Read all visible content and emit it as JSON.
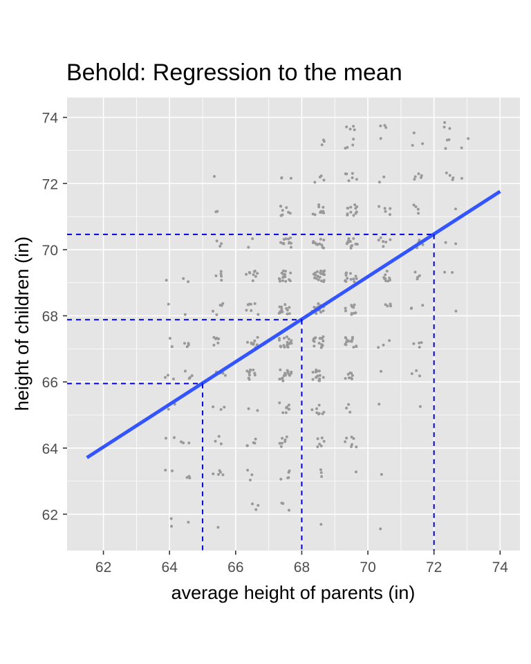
{
  "chart_data": {
    "type": "scatter",
    "title": "Behold: Regression to the mean",
    "xlabel": "average height of parents (in)",
    "ylabel": "height of children (in)",
    "xlim": [
      60.9,
      74.6
    ],
    "ylim": [
      60.9,
      74.6
    ],
    "x_ticks": [
      "62",
      "64",
      "66",
      "68",
      "70",
      "72",
      "74"
    ],
    "y_ticks": [
      "62",
      "64",
      "66",
      "68",
      "70",
      "72",
      "74"
    ],
    "grid": true,
    "colors": {
      "panel": "#e5e5e5",
      "grid": "#ffffff",
      "points": "#999999",
      "fit_line": "#3355ff",
      "guides": "#0000dd"
    },
    "point_groups": [
      {
        "x": 64.0,
        "y": 61.7,
        "n": 2
      },
      {
        "x": 64.5,
        "y": 61.7,
        "n": 1
      },
      {
        "x": 64.0,
        "y": 63.2,
        "n": 2
      },
      {
        "x": 64.5,
        "y": 63.2,
        "n": 3
      },
      {
        "x": 64.0,
        "y": 64.2,
        "n": 2
      },
      {
        "x": 64.5,
        "y": 64.2,
        "n": 3
      },
      {
        "x": 64.0,
        "y": 65.2,
        "n": 2
      },
      {
        "x": 64.0,
        "y": 66.2,
        "n": 3
      },
      {
        "x": 64.5,
        "y": 66.2,
        "n": 4
      },
      {
        "x": 64.0,
        "y": 67.2,
        "n": 2
      },
      {
        "x": 64.5,
        "y": 67.2,
        "n": 4
      },
      {
        "x": 64.0,
        "y": 68.2,
        "n": 1
      },
      {
        "x": 64.5,
        "y": 68.2,
        "n": 1
      },
      {
        "x": 64.0,
        "y": 69.2,
        "n": 1
      },
      {
        "x": 64.5,
        "y": 69.2,
        "n": 2
      },
      {
        "x": 65.5,
        "y": 61.7,
        "n": 1
      },
      {
        "x": 65.5,
        "y": 63.2,
        "n": 5
      },
      {
        "x": 65.5,
        "y": 64.2,
        "n": 3
      },
      {
        "x": 65.5,
        "y": 65.2,
        "n": 3
      },
      {
        "x": 65.5,
        "y": 66.2,
        "n": 6
      },
      {
        "x": 65.5,
        "y": 67.2,
        "n": 6
      },
      {
        "x": 65.5,
        "y": 68.2,
        "n": 5
      },
      {
        "x": 65.5,
        "y": 69.2,
        "n": 5
      },
      {
        "x": 65.5,
        "y": 70.2,
        "n": 3
      },
      {
        "x": 65.5,
        "y": 71.2,
        "n": 2
      },
      {
        "x": 65.5,
        "y": 72.2,
        "n": 1
      },
      {
        "x": 66.5,
        "y": 62.2,
        "n": 3
      },
      {
        "x": 66.5,
        "y": 63.2,
        "n": 3
      },
      {
        "x": 66.5,
        "y": 64.2,
        "n": 5
      },
      {
        "x": 66.5,
        "y": 65.2,
        "n": 2
      },
      {
        "x": 66.5,
        "y": 66.2,
        "n": 10
      },
      {
        "x": 66.5,
        "y": 67.2,
        "n": 10
      },
      {
        "x": 66.5,
        "y": 68.2,
        "n": 7
      },
      {
        "x": 66.5,
        "y": 69.2,
        "n": 9
      },
      {
        "x": 66.5,
        "y": 70.2,
        "n": 2
      },
      {
        "x": 67.5,
        "y": 62.2,
        "n": 3
      },
      {
        "x": 67.5,
        "y": 63.2,
        "n": 5
      },
      {
        "x": 67.5,
        "y": 64.2,
        "n": 7
      },
      {
        "x": 67.5,
        "y": 65.2,
        "n": 8
      },
      {
        "x": 67.5,
        "y": 66.2,
        "n": 15
      },
      {
        "x": 67.5,
        "y": 67.2,
        "n": 18
      },
      {
        "x": 67.5,
        "y": 68.2,
        "n": 13
      },
      {
        "x": 67.5,
        "y": 69.2,
        "n": 16
      },
      {
        "x": 67.5,
        "y": 70.2,
        "n": 12
      },
      {
        "x": 67.5,
        "y": 71.2,
        "n": 8
      },
      {
        "x": 67.5,
        "y": 72.2,
        "n": 3
      },
      {
        "x": 68.5,
        "y": 61.7,
        "n": 1
      },
      {
        "x": 68.5,
        "y": 63.2,
        "n": 3
      },
      {
        "x": 68.5,
        "y": 64.2,
        "n": 6
      },
      {
        "x": 68.5,
        "y": 65.2,
        "n": 8
      },
      {
        "x": 68.5,
        "y": 66.2,
        "n": 14
      },
      {
        "x": 68.5,
        "y": 67.2,
        "n": 16
      },
      {
        "x": 68.5,
        "y": 68.2,
        "n": 15
      },
      {
        "x": 68.5,
        "y": 69.2,
        "n": 22
      },
      {
        "x": 68.5,
        "y": 70.2,
        "n": 12
      },
      {
        "x": 68.5,
        "y": 71.2,
        "n": 10
      },
      {
        "x": 68.5,
        "y": 72.2,
        "n": 4
      },
      {
        "x": 68.5,
        "y": 73.2,
        "n": 3
      },
      {
        "x": 69.5,
        "y": 63.2,
        "n": 1
      },
      {
        "x": 69.5,
        "y": 64.2,
        "n": 7
      },
      {
        "x": 69.5,
        "y": 65.2,
        "n": 3
      },
      {
        "x": 69.5,
        "y": 66.2,
        "n": 8
      },
      {
        "x": 69.5,
        "y": 67.2,
        "n": 14
      },
      {
        "x": 69.5,
        "y": 68.2,
        "n": 10
      },
      {
        "x": 69.5,
        "y": 69.2,
        "n": 13
      },
      {
        "x": 69.5,
        "y": 70.2,
        "n": 14
      },
      {
        "x": 69.5,
        "y": 71.2,
        "n": 12
      },
      {
        "x": 69.5,
        "y": 72.2,
        "n": 6
      },
      {
        "x": 69.5,
        "y": 73.2,
        "n": 4
      },
      {
        "x": 69.5,
        "y": 73.7,
        "n": 4
      },
      {
        "x": 70.5,
        "y": 61.7,
        "n": 1
      },
      {
        "x": 70.5,
        "y": 63.2,
        "n": 1
      },
      {
        "x": 70.5,
        "y": 65.2,
        "n": 1
      },
      {
        "x": 70.5,
        "y": 66.2,
        "n": 1
      },
      {
        "x": 70.5,
        "y": 67.2,
        "n": 3
      },
      {
        "x": 70.5,
        "y": 68.2,
        "n": 4
      },
      {
        "x": 70.5,
        "y": 69.2,
        "n": 9
      },
      {
        "x": 70.5,
        "y": 70.2,
        "n": 6
      },
      {
        "x": 70.5,
        "y": 71.2,
        "n": 5
      },
      {
        "x": 70.5,
        "y": 72.2,
        "n": 2
      },
      {
        "x": 70.5,
        "y": 73.2,
        "n": 1
      },
      {
        "x": 70.5,
        "y": 73.7,
        "n": 3
      },
      {
        "x": 71.5,
        "y": 65.2,
        "n": 1
      },
      {
        "x": 71.5,
        "y": 66.2,
        "n": 3
      },
      {
        "x": 71.5,
        "y": 67.2,
        "n": 4
      },
      {
        "x": 71.5,
        "y": 68.2,
        "n": 3
      },
      {
        "x": 71.5,
        "y": 69.2,
        "n": 4
      },
      {
        "x": 71.5,
        "y": 70.2,
        "n": 4
      },
      {
        "x": 71.5,
        "y": 71.2,
        "n": 4
      },
      {
        "x": 71.5,
        "y": 72.2,
        "n": 5
      },
      {
        "x": 71.5,
        "y": 73.2,
        "n": 2
      },
      {
        "x": 71.5,
        "y": 73.7,
        "n": 1
      },
      {
        "x": 72.5,
        "y": 68.2,
        "n": 1
      },
      {
        "x": 72.5,
        "y": 69.2,
        "n": 2
      },
      {
        "x": 72.5,
        "y": 70.2,
        "n": 2
      },
      {
        "x": 72.5,
        "y": 71.2,
        "n": 1
      },
      {
        "x": 72.5,
        "y": 72.2,
        "n": 4
      },
      {
        "x": 72.5,
        "y": 73.2,
        "n": 3
      },
      {
        "x": 72.5,
        "y": 73.7,
        "n": 3
      },
      {
        "x": 73.0,
        "y": 72.2,
        "n": 1
      },
      {
        "x": 73.0,
        "y": 73.2,
        "n": 2
      }
    ],
    "fit_line": {
      "x": [
        61.5,
        74.0
      ],
      "y": [
        63.71,
        71.76
      ]
    },
    "guides": [
      {
        "x": 65,
        "y": 65.95
      },
      {
        "x": 68,
        "y": 67.88
      },
      {
        "x": 72,
        "y": 70.46
      }
    ]
  }
}
